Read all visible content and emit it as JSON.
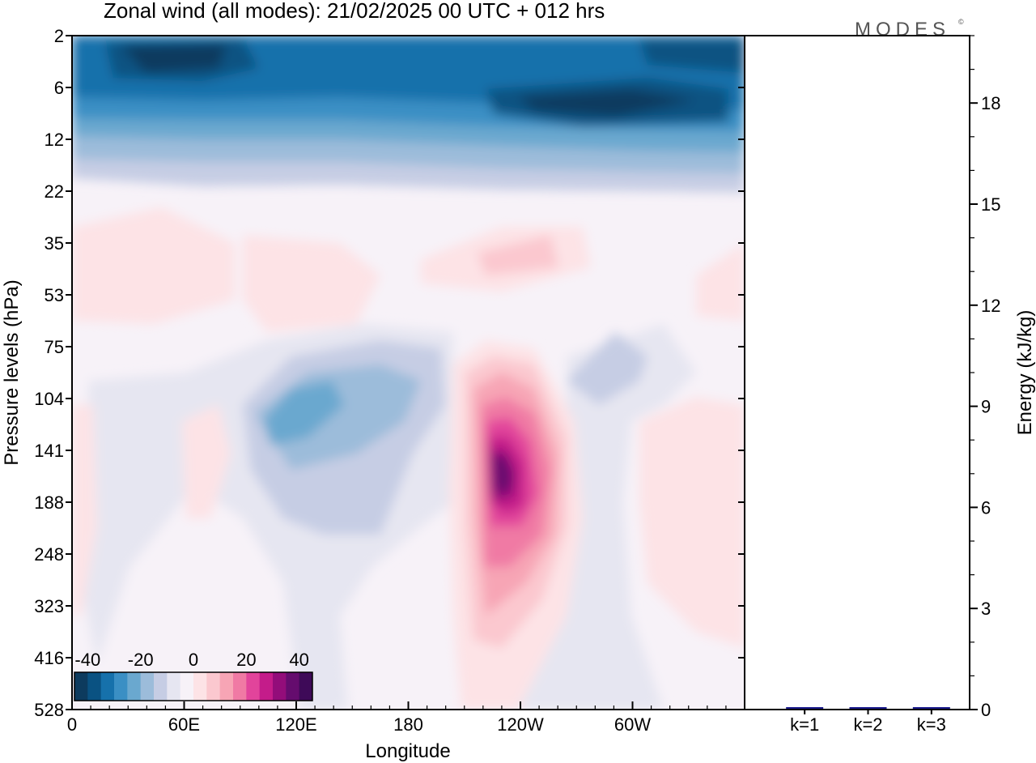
{
  "title": "Zonal wind (all modes):  21/02/2025  00 UTC  + 012 hrs",
  "logo_text": "MODES",
  "logo_mark": "©",
  "chart_data": [
    {
      "type": "heatmap",
      "title": "Zonal wind (all modes):  21/02/2025  00 UTC  + 012 hrs",
      "xlabel": "Longitude",
      "ylabel": "Pressure levels (hPa)",
      "x_ticks": [
        "0",
        "60E",
        "120E",
        "180",
        "120W",
        "60W"
      ],
      "x_tick_degrees": [
        0,
        60,
        120,
        180,
        240,
        300
      ],
      "xlim": [
        0,
        360
      ],
      "y_levels_hPa": [
        "2",
        "6",
        "12",
        "22",
        "35",
        "53",
        "75",
        "104",
        "141",
        "188",
        "248",
        "323",
        "416",
        "528"
      ],
      "y_scale": "categorical pressure levels, top to bottom",
      "colorbar": {
        "ticks": [
          "-40",
          "-20",
          "0",
          "20",
          "40"
        ],
        "range": [
          -45,
          45
        ],
        "step": 5,
        "colors": [
          "#0d3b5e",
          "#0a5282",
          "#1671ab",
          "#3a8fc4",
          "#6aa8cf",
          "#9cbcda",
          "#c6cde4",
          "#e6e6f1",
          "#f7f2f8",
          "#fde3e6",
          "#fbc8cf",
          "#f7a5b5",
          "#f07aa4",
          "#e2449b",
          "#c41c8a",
          "#930d7a",
          "#650c6e",
          "#3e0a58"
        ]
      },
      "grid": false,
      "legend": "colorbar bottom-left inside plot",
      "features": [
        {
          "name": "easterly jet (upper levels)",
          "lon_range": [
            0,
            360
          ],
          "levels": "2-12 hPa",
          "value": -40
        },
        {
          "name": "westerly maximum near 120W",
          "lon_center": 232,
          "level_center": "141 hPa",
          "value": 45
        },
        {
          "name": "easterly core near 120E",
          "lon_center": 120,
          "level_center": "104 hPa",
          "value": -15
        }
      ]
    },
    {
      "type": "bar",
      "title": "",
      "categories": [
        "k=1",
        "k=2",
        "k=3"
      ],
      "values": [
        0.04,
        0.03,
        0.03
      ],
      "xlabel": "",
      "ylabel": "Energy (kJ/kg)",
      "ylim": [
        0,
        20
      ],
      "y_ticks": [
        "0",
        "3",
        "6",
        "9",
        "12",
        "15",
        "18"
      ],
      "grid": false
    }
  ]
}
